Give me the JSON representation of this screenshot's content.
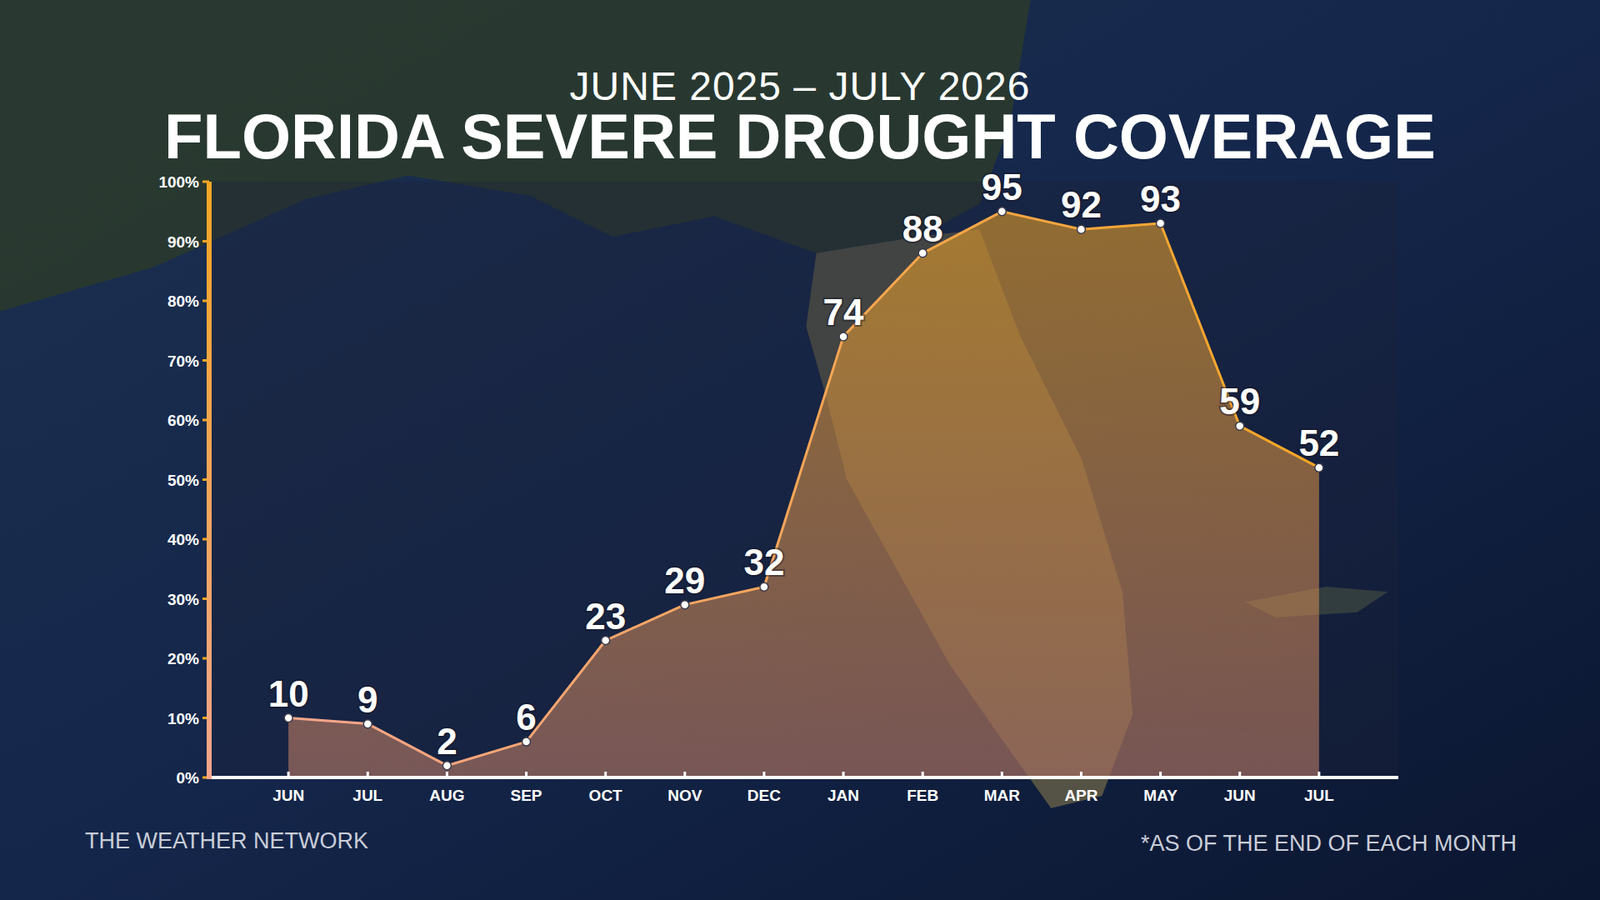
{
  "chart_data": {
    "type": "area",
    "title": "FLORIDA SEVERE DROUGHT COVERAGE",
    "subtitle": "JUNE 2025 – JULY 2026",
    "source": "THE WEATHER NETWORK",
    "note": "*AS OF THE END OF EACH MONTH",
    "categories": [
      "JUN",
      "JUL",
      "AUG",
      "SEP",
      "OCT",
      "NOV",
      "DEC",
      "JAN",
      "FEB",
      "MAR",
      "APR",
      "MAY",
      "JUN",
      "JUL"
    ],
    "values": [
      10,
      9,
      2,
      6,
      23,
      29,
      32,
      74,
      88,
      95,
      92,
      93,
      59,
      52
    ],
    "color": "#f5a623",
    "ylim": [
      0,
      100
    ],
    "yticks": [
      {
        "value": 0,
        "label": "0%"
      },
      {
        "value": 10,
        "label": "10%"
      },
      {
        "value": 20,
        "label": "20%"
      },
      {
        "value": 30,
        "label": "30%"
      },
      {
        "value": 40,
        "label": "40%"
      },
      {
        "value": 50,
        "label": "50%"
      },
      {
        "value": 60,
        "label": "60%"
      },
      {
        "value": 70,
        "label": "70%"
      },
      {
        "value": 80,
        "label": "80%"
      },
      {
        "value": 90,
        "label": "90%"
      },
      {
        "value": 100,
        "label": "100%"
      }
    ],
    "grid": false,
    "data_labels": true,
    "marker": "circle"
  }
}
